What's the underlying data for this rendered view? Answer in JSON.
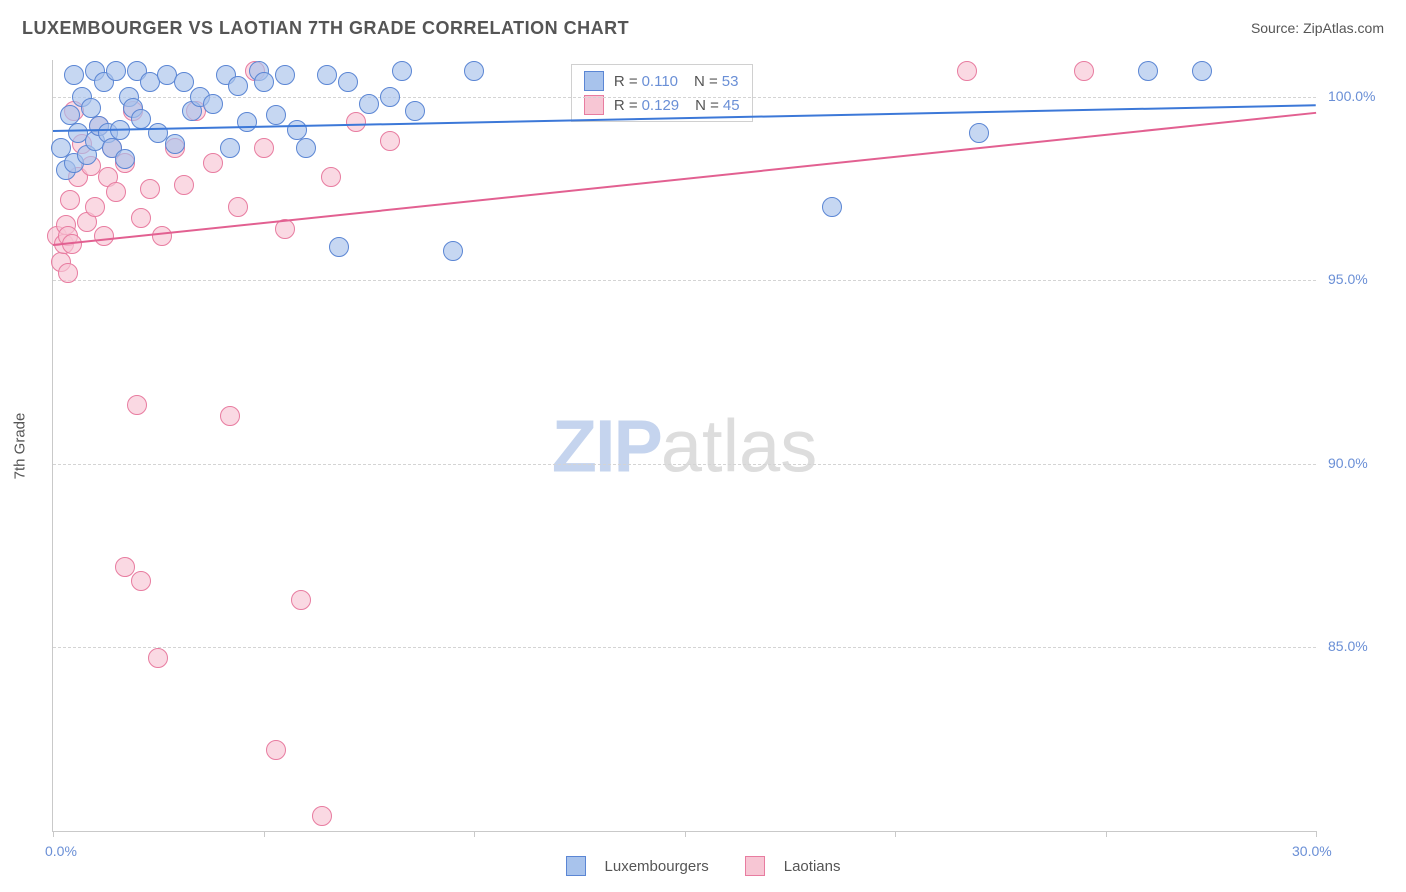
{
  "title": "LUXEMBOURGER VS LAOTIAN 7TH GRADE CORRELATION CHART",
  "source_label": "Source: ",
  "source_name": "ZipAtlas.com",
  "ylabel": "7th Grade",
  "watermark_zip": "ZIP",
  "watermark_atlas": "atlas",
  "chart": {
    "type": "scatter",
    "background_color": "#ffffff",
    "grid_color": "#d4d4d4",
    "axis_color": "#c9c9c9",
    "label_color": "#6a8fd6",
    "text_color": "#555555",
    "xlim": [
      0,
      30
    ],
    "ylim": [
      80,
      101
    ],
    "ytick_step": 5,
    "ytick_labels": [
      "85.0%",
      "90.0%",
      "95.0%",
      "100.0%"
    ],
    "ytick_values": [
      85,
      90,
      95,
      100
    ],
    "xtick_values": [
      0,
      5,
      10,
      15,
      20,
      25,
      30
    ],
    "xtick_labels_shown": {
      "0": "0.0%",
      "30": "30.0%"
    },
    "marker_radius": 10,
    "marker_border_width": 1.5,
    "marker_fill_opacity": 0.22
  },
  "series": {
    "luxembourgers": {
      "label": "Luxembourgers",
      "fill": "#a8c3ec",
      "stroke": "#5b86d4",
      "trend_color": "#3c78d8",
      "trend_y_start": 99.1,
      "trend_y_end": 99.8,
      "R": "0.110",
      "N": "53",
      "points": [
        [
          0.2,
          98.6
        ],
        [
          0.3,
          98.0
        ],
        [
          0.4,
          99.5
        ],
        [
          0.5,
          100.6
        ],
        [
          0.5,
          98.2
        ],
        [
          0.6,
          99.0
        ],
        [
          0.7,
          100.0
        ],
        [
          0.8,
          98.4
        ],
        [
          0.9,
          99.7
        ],
        [
          1.0,
          100.7
        ],
        [
          1.0,
          98.8
        ],
        [
          1.1,
          99.2
        ],
        [
          1.2,
          100.4
        ],
        [
          1.3,
          99.0
        ],
        [
          1.4,
          98.6
        ],
        [
          1.5,
          100.7
        ],
        [
          1.6,
          99.1
        ],
        [
          1.7,
          98.3
        ],
        [
          1.8,
          100.0
        ],
        [
          1.9,
          99.7
        ],
        [
          2.0,
          100.7
        ],
        [
          2.1,
          99.4
        ],
        [
          2.3,
          100.4
        ],
        [
          2.5,
          99.0
        ],
        [
          2.7,
          100.6
        ],
        [
          2.9,
          98.7
        ],
        [
          3.1,
          100.4
        ],
        [
          3.3,
          99.6
        ],
        [
          3.5,
          100.0
        ],
        [
          3.8,
          99.8
        ],
        [
          4.1,
          100.6
        ],
        [
          4.2,
          98.6
        ],
        [
          4.4,
          100.3
        ],
        [
          4.6,
          99.3
        ],
        [
          4.9,
          100.7
        ],
        [
          5.0,
          100.4
        ],
        [
          5.3,
          99.5
        ],
        [
          5.5,
          100.6
        ],
        [
          5.8,
          99.1
        ],
        [
          6.0,
          98.6
        ],
        [
          6.5,
          100.6
        ],
        [
          6.8,
          95.9
        ],
        [
          7.0,
          100.4
        ],
        [
          7.5,
          99.8
        ],
        [
          8.0,
          100.0
        ],
        [
          8.3,
          100.7
        ],
        [
          8.6,
          99.6
        ],
        [
          9.5,
          95.8
        ],
        [
          10.0,
          100.7
        ],
        [
          18.5,
          97.0
        ],
        [
          22.0,
          99.0
        ],
        [
          26.0,
          100.7
        ],
        [
          27.3,
          100.7
        ]
      ]
    },
    "laotians": {
      "label": "Laotians",
      "fill": "#f7c6d4",
      "stroke": "#e87ca0",
      "trend_color": "#e26091",
      "trend_y_start": 96.0,
      "trend_y_end": 99.6,
      "R": "0.129",
      "N": "45",
      "points": [
        [
          0.1,
          96.2
        ],
        [
          0.2,
          95.5
        ],
        [
          0.25,
          96.0
        ],
        [
          0.3,
          96.5
        ],
        [
          0.35,
          95.2
        ],
        [
          0.35,
          96.2
        ],
        [
          0.4,
          97.2
        ],
        [
          0.45,
          96.0
        ],
        [
          0.5,
          99.6
        ],
        [
          0.6,
          97.8
        ],
        [
          0.7,
          98.7
        ],
        [
          0.8,
          96.6
        ],
        [
          0.9,
          98.1
        ],
        [
          1.0,
          97.0
        ],
        [
          1.1,
          99.2
        ],
        [
          1.2,
          96.2
        ],
        [
          1.3,
          97.8
        ],
        [
          1.4,
          98.6
        ],
        [
          1.5,
          97.4
        ],
        [
          1.7,
          98.2
        ],
        [
          1.7,
          87.2
        ],
        [
          1.9,
          99.6
        ],
        [
          2.0,
          91.6
        ],
        [
          2.1,
          96.7
        ],
        [
          2.1,
          86.8
        ],
        [
          2.3,
          97.5
        ],
        [
          2.5,
          84.7
        ],
        [
          2.6,
          96.2
        ],
        [
          2.9,
          98.6
        ],
        [
          3.1,
          97.6
        ],
        [
          3.4,
          99.6
        ],
        [
          3.8,
          98.2
        ],
        [
          4.2,
          91.3
        ],
        [
          4.4,
          97.0
        ],
        [
          4.8,
          100.7
        ],
        [
          5.0,
          98.6
        ],
        [
          5.3,
          82.2
        ],
        [
          5.5,
          96.4
        ],
        [
          5.9,
          86.3
        ],
        [
          6.4,
          80.4
        ],
        [
          6.6,
          97.8
        ],
        [
          7.2,
          99.3
        ],
        [
          8.0,
          98.8
        ],
        [
          21.7,
          100.7
        ],
        [
          24.5,
          100.7
        ]
      ]
    }
  },
  "stats_box": {
    "R_label": "R =",
    "N_label": "N ="
  }
}
